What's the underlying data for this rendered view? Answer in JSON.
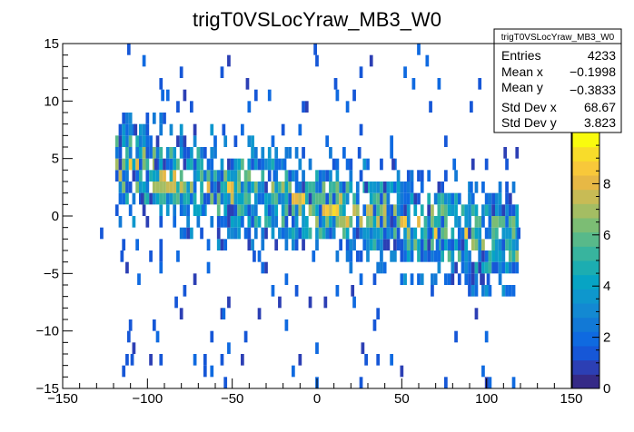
{
  "chart_data": {
    "type": "heatmap",
    "title": "trigT0VSLocYraw_MB3_W0",
    "xlabel": "",
    "ylabel": "",
    "xlim": [
      -150,
      150
    ],
    "ylim": [
      -15,
      15
    ],
    "x_ticks": [
      -150,
      -100,
      -50,
      0,
      50,
      100,
      150
    ],
    "x_tick_labels": [
      "−150",
      "−100",
      "−50",
      "0",
      "50",
      "100",
      "150"
    ],
    "y_ticks": [
      -15,
      -10,
      -5,
      0,
      5,
      10,
      15
    ],
    "y_tick_labels": [
      "−15",
      "−10",
      "−5",
      "0",
      "5",
      "10",
      "15"
    ],
    "z_range": [
      0,
      10
    ],
    "z_ticks": [
      0,
      2,
      4,
      6,
      8
    ],
    "z_tick_labels": [
      "0",
      "2",
      "4",
      "6",
      "8"
    ],
    "x_bin_width": 2,
    "y_bin_width": 1,
    "stats": {
      "name": "trigT0VSLocYraw_MB3_W0",
      "rows": [
        {
          "label": "Entries",
          "value": "4233"
        },
        {
          "label": "Mean x",
          "value": "−0.1998"
        },
        {
          "label": "Mean y",
          "value": "−0.3833"
        },
        {
          "label": "Std Dev x",
          "value": "68.67"
        },
        {
          "label": "Std Dev y",
          "value": "3.823"
        }
      ]
    },
    "palette": [
      "#352a87",
      "#2c3fb4",
      "#1657d7",
      "#0f6ae0",
      "#1279d6",
      "#1389d2",
      "#0e97cd",
      "#07a4c4",
      "#1cadb1",
      "#38b49e",
      "#58b98a",
      "#7cbd74",
      "#a4bd63",
      "#c8bb55",
      "#e7b845",
      "#f8c83a",
      "#f8dc2a",
      "#f9fb0e"
    ],
    "distribution": {
      "x_range": [
        -119,
        119
      ],
      "segments": [
        {
          "x": [
            -119,
            -60
          ],
          "y_center_at_x_start": 4.5,
          "y_center_at_x_end": 2.5
        },
        {
          "x": [
            -60,
            119
          ],
          "y_center_at_x_start": 2.5,
          "y_center_at_x_end": -2.5
        }
      ],
      "core_halfwidth": 3,
      "outliers_x_lim": [
        -130,
        125
      ]
    }
  }
}
